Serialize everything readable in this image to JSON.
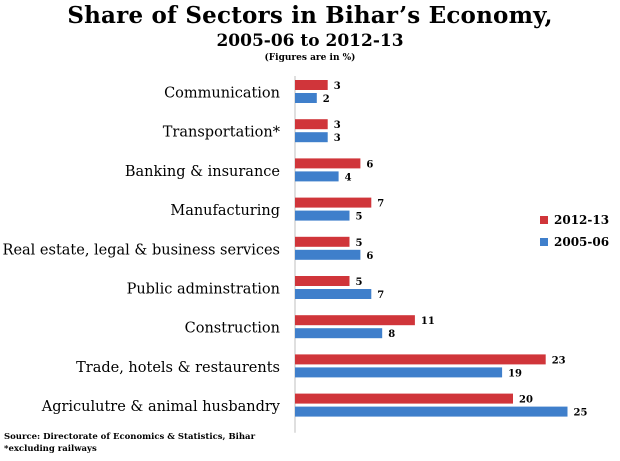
{
  "title": "Share of Sectors in Bihar’s Economy,",
  "subtitle": "2005-06 to 2012-13",
  "note": "(Figures are in %)",
  "source": "Source: Directorate of Economics & Statistics, Bihar",
  "footnote": "*excluding railways",
  "chart_data": {
    "type": "bar",
    "orientation": "horizontal",
    "categories": [
      "Communication",
      "Transportation*",
      "Banking & insurance",
      "Manufacturing",
      "Real estate, legal & business services",
      "Public adminstration",
      "Construction",
      "Trade, hotels & restaurents",
      "Agriculutre & animal husbandry"
    ],
    "series": [
      {
        "name": "2012-13",
        "color": "#d0353a",
        "values": [
          3,
          3,
          6,
          7,
          5,
          5,
          11,
          23,
          20
        ]
      },
      {
        "name": "2005-06",
        "color": "#3f7fcb",
        "values": [
          2,
          3,
          4,
          5,
          6,
          7,
          8,
          19,
          25
        ]
      }
    ],
    "xlim": [
      0,
      25
    ],
    "grid": false,
    "legend_position": "right"
  }
}
